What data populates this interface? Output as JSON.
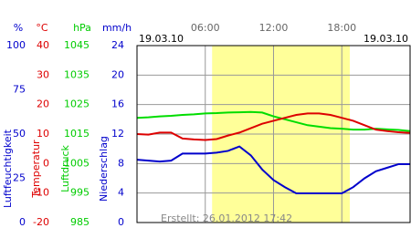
{
  "chart_data": {
    "type": "line",
    "date_left": "19.03.10",
    "date_right": "19.03.10",
    "footer": "Erstellt: 26.01.2012 17:42",
    "xlim": [
      0,
      24
    ],
    "xticks": [
      {
        "value": 6,
        "label": "06:00"
      },
      {
        "value": 12,
        "label": "12:00"
      },
      {
        "value": 18,
        "label": "18:00"
      }
    ],
    "shaded_x": [
      6.6,
      18.7
    ],
    "axes": [
      {
        "title": "Luftfeuchtigkeit",
        "unit": "%",
        "color": "#0000cc",
        "ylim": [
          0,
          100
        ],
        "yticks": [
          0,
          25,
          50,
          75,
          100
        ]
      },
      {
        "title": "Temperatur",
        "unit": "°C",
        "color": "#dd0000",
        "ylim": [
          -20,
          40
        ],
        "yticks": [
          -20,
          -10,
          0,
          10,
          20,
          30,
          40
        ]
      },
      {
        "title": "Luftdruck",
        "unit": "hPa",
        "color": "#00cc00",
        "ylim": [
          985,
          1045
        ],
        "yticks": [
          985,
          995,
          1005,
          1015,
          1025,
          1035,
          1045
        ]
      },
      {
        "title": "Niederschlag",
        "unit": "mm/h",
        "color": "#0000cc",
        "ylim": [
          0,
          24
        ],
        "yticks": [
          0,
          4,
          8,
          12,
          16,
          20,
          24
        ]
      }
    ],
    "x": [
      0,
      1,
      2,
      3,
      4,
      5,
      6,
      7,
      8,
      9,
      10,
      11,
      12,
      13,
      14,
      15,
      16,
      17,
      18,
      19,
      20,
      21,
      22,
      23,
      24
    ],
    "series": [
      {
        "axis": 0,
        "color": "#0000cc",
        "values": [
          35.5,
          35,
          34.5,
          35,
          39,
          39,
          39,
          39.5,
          40.5,
          43,
          38,
          30,
          24,
          20,
          16.5,
          16.5,
          16.5,
          16.5,
          16.5,
          20,
          25,
          29,
          31,
          33,
          33
        ]
      },
      {
        "axis": 2,
        "color": "#00dd00",
        "values": [
          1020.5,
          1020.7,
          1021,
          1021.2,
          1021.5,
          1021.7,
          1022,
          1022.1,
          1022.3,
          1022.4,
          1022.5,
          1022.3,
          1021,
          1020,
          1019,
          1018,
          1017.5,
          1017,
          1016.8,
          1016.5,
          1016.5,
          1016.8,
          1016.6,
          1016.4,
          1016
        ]
      },
      {
        "axis": 1,
        "color": "#dd0000",
        "values": [
          10,
          9.8,
          10.5,
          10.5,
          8.5,
          8.2,
          8,
          8.3,
          9.5,
          10.5,
          12,
          13.5,
          14.5,
          15.5,
          16.5,
          17,
          17,
          16.5,
          15.5,
          14.5,
          13,
          11.5,
          11,
          10.6,
          10.4
        ]
      }
    ]
  }
}
